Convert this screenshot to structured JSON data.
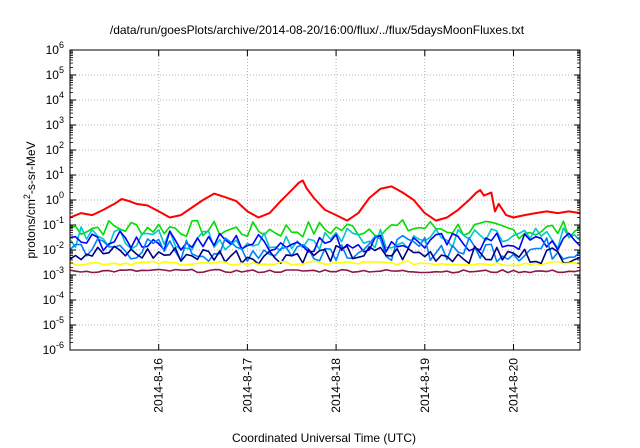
{
  "chart_data": {
    "type": "line",
    "title": "/data/run/goesPlots/archive/2014-08-20/16:00/flux/../flux/5daysMoonFluxes.txt",
    "xlabel": "Coordinated Universal Time (UTC)",
    "ylabel": "protons/cm2-s-sr-MeV",
    "ylabel_parts": {
      "pre": "protons/cm",
      "sup": "2",
      "post": "-s-sr-MeV"
    },
    "yscale": "log",
    "ylim": [
      1e-06,
      1000000.0
    ],
    "y_ticks": [
      {
        "exp": -6,
        "base": "10",
        "sup": "-6"
      },
      {
        "exp": -5,
        "base": "10",
        "sup": "-5"
      },
      {
        "exp": -4,
        "base": "10",
        "sup": "-4"
      },
      {
        "exp": -3,
        "base": "10",
        "sup": "-3"
      },
      {
        "exp": -2,
        "base": "10",
        "sup": "-2"
      },
      {
        "exp": -1,
        "base": "10",
        "sup": "-1"
      },
      {
        "exp": 0,
        "base": "10",
        "sup": "0"
      },
      {
        "exp": 1,
        "base": "10",
        "sup": "1"
      },
      {
        "exp": 2,
        "base": "10",
        "sup": "2"
      },
      {
        "exp": 3,
        "base": "10",
        "sup": "3"
      },
      {
        "exp": 4,
        "base": "10",
        "sup": "4"
      },
      {
        "exp": 5,
        "base": "10",
        "sup": "5"
      },
      {
        "exp": 6,
        "base": "10",
        "sup": "6"
      }
    ],
    "xlim": [
      "2014-08-15 00:00",
      "2014-08-20 18:00"
    ],
    "x_ticks": [
      {
        "t": "2014-08-16 00:00",
        "label": "2014-8-16"
      },
      {
        "t": "2014-08-17 00:00",
        "label": "2014-8-17"
      },
      {
        "t": "2014-08-18 00:00",
        "label": "2014-8-18"
      },
      {
        "t": "2014-08-19 00:00",
        "label": "2014-8-19"
      },
      {
        "t": "2014-08-20 00:00",
        "label": "2014-8-20"
      }
    ],
    "grid": true,
    "series": [
      {
        "color": "#ff0000",
        "x": [
          "2014-08-15 00:00",
          "2014-08-15 03:00",
          "2014-08-15 06:00",
          "2014-08-15 09:00",
          "2014-08-15 12:00",
          "2014-08-15 14:00",
          "2014-08-15 16:00",
          "2014-08-15 18:00",
          "2014-08-15 21:00",
          "2014-08-16 00:00",
          "2014-08-16 03:00",
          "2014-08-16 06:00",
          "2014-08-16 09:00",
          "2014-08-16 12:00",
          "2014-08-16 15:00",
          "2014-08-16 18:00",
          "2014-08-16 21:00",
          "2014-08-17 00:00",
          "2014-08-17 03:00",
          "2014-08-17 06:00",
          "2014-08-17 09:00",
          "2014-08-17 12:00",
          "2014-08-17 14:00",
          "2014-08-17 15:00",
          "2014-08-17 16:00",
          "2014-08-17 18:00",
          "2014-08-17 21:00",
          "2014-08-18 00:00",
          "2014-08-18 03:00",
          "2014-08-18 06:00",
          "2014-08-18 09:00",
          "2014-08-18 12:00",
          "2014-08-18 15:00",
          "2014-08-18 18:00",
          "2014-08-18 21:00",
          "2014-08-19 00:00",
          "2014-08-19 03:00",
          "2014-08-19 06:00",
          "2014-08-19 09:00",
          "2014-08-19 12:00",
          "2014-08-19 14:00",
          "2014-08-19 15:00",
          "2014-08-19 16:00",
          "2014-08-19 18:00",
          "2014-08-19 19:00",
          "2014-08-19 20:00",
          "2014-08-19 22:00",
          "2014-08-20 00:00",
          "2014-08-20 03:00",
          "2014-08-20 06:00",
          "2014-08-20 09:00",
          "2014-08-20 12:00",
          "2014-08-20 15:00",
          "2014-08-20 18:00"
        ],
        "y": [
          0.2,
          0.3,
          0.25,
          0.4,
          0.7,
          1.1,
          0.9,
          0.7,
          0.6,
          0.35,
          0.2,
          0.25,
          0.5,
          1.0,
          1.8,
          1.3,
          0.9,
          0.35,
          0.2,
          0.3,
          0.9,
          2.5,
          5.0,
          6.0,
          3.0,
          1.2,
          0.4,
          0.25,
          0.15,
          0.3,
          1.2,
          2.8,
          3.5,
          2.0,
          1.0,
          0.3,
          0.15,
          0.2,
          0.4,
          1.0,
          2.0,
          2.5,
          1.5,
          2.0,
          0.35,
          0.7,
          0.25,
          0.2,
          0.25,
          0.3,
          0.35,
          0.3,
          0.35,
          0.3
        ]
      },
      {
        "color": "#00dd00",
        "x": [
          "2014-08-15 00:00",
          "2014-08-16 00:00",
          "2014-08-17 00:00",
          "2014-08-18 00:00",
          "2014-08-19 00:00",
          "2014-08-20 00:00",
          "2014-08-20 18:00"
        ],
        "y": [
          0.08,
          0.08,
          0.06,
          0.07,
          0.08,
          0.06,
          0.07
        ],
        "noise": 0.35
      },
      {
        "color": "#00c8c8",
        "x": [
          "2014-08-15 00:00",
          "2014-08-16 00:00",
          "2014-08-17 00:00",
          "2014-08-18 00:00",
          "2014-08-19 00:00",
          "2014-08-20 00:00",
          "2014-08-20 18:00"
        ],
        "y": [
          0.03,
          0.03,
          0.025,
          0.03,
          0.03,
          0.025,
          0.03
        ],
        "noise": 0.45
      },
      {
        "color": "#0000ff",
        "x": [
          "2014-08-15 00:00",
          "2014-08-16 00:00",
          "2014-08-17 00:00",
          "2014-08-18 00:00",
          "2014-08-19 00:00",
          "2014-08-20 00:00",
          "2014-08-20 18:00"
        ],
        "y": [
          0.02,
          0.025,
          0.02,
          0.02,
          0.02,
          0.02,
          0.02
        ],
        "noise": 0.4
      },
      {
        "color": "#0080ff",
        "x": [
          "2014-08-15 00:00",
          "2014-08-16 00:00",
          "2014-08-17 00:00",
          "2014-08-18 00:00",
          "2014-08-19 00:00",
          "2014-08-20 00:00",
          "2014-08-20 18:00"
        ],
        "y": [
          0.015,
          0.01,
          0.01,
          0.012,
          0.012,
          0.01,
          0.012
        ],
        "noise": 0.5
      },
      {
        "color": "#000080",
        "x": [
          "2014-08-15 00:00",
          "2014-08-16 00:00",
          "2014-08-17 00:00",
          "2014-08-18 00:00",
          "2014-08-19 00:00",
          "2014-08-20 00:00",
          "2014-08-20 18:00"
        ],
        "y": [
          0.008,
          0.007,
          0.006,
          0.007,
          0.007,
          0.006,
          0.007
        ],
        "noise": 0.35
      },
      {
        "color": "#ffff00",
        "x": [
          "2014-08-15 00:00",
          "2014-08-16 00:00",
          "2014-08-17 00:00",
          "2014-08-18 00:00",
          "2014-08-19 00:00",
          "2014-08-20 00:00",
          "2014-08-20 18:00"
        ],
        "y": [
          0.003,
          0.003,
          0.0028,
          0.003,
          0.003,
          0.0028,
          0.003
        ],
        "noise": 0.08
      },
      {
        "color": "#8b1a4a",
        "x": [
          "2014-08-15 00:00",
          "2014-08-16 00:00",
          "2014-08-17 00:00",
          "2014-08-18 00:00",
          "2014-08-19 00:00",
          "2014-08-20 00:00",
          "2014-08-20 18:00"
        ],
        "y": [
          0.0014,
          0.0015,
          0.0014,
          0.0015,
          0.0014,
          0.0014,
          0.0014
        ],
        "noise": 0.06
      }
    ]
  }
}
